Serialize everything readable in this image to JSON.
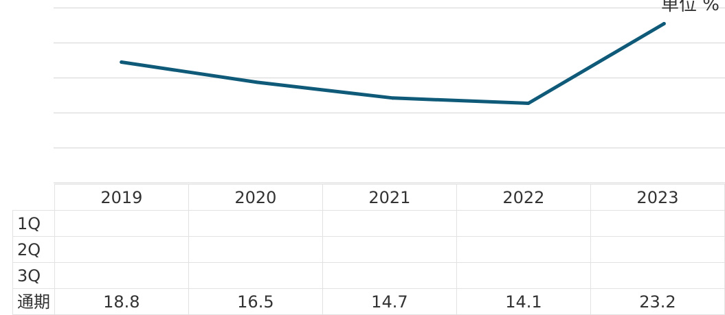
{
  "chart_data": {
    "type": "line",
    "unit_label": "単位 %",
    "categories": [
      "2019",
      "2020",
      "2021",
      "2022",
      "2023"
    ],
    "series": [
      {
        "values": [
          18.8,
          16.5,
          14.7,
          14.1,
          23.2
        ]
      }
    ],
    "ylim": [
      5,
      25
    ],
    "grid": true,
    "line_color": "#0e5a78",
    "table": {
      "rows": [
        {
          "label": "1Q",
          "values": [
            "",
            "",
            "",
            "",
            ""
          ]
        },
        {
          "label": "2Q",
          "values": [
            "",
            "",
            "",
            "",
            ""
          ]
        },
        {
          "label": "3Q",
          "values": [
            "",
            "",
            "",
            "",
            ""
          ]
        },
        {
          "label": "通期",
          "values": [
            "18.8",
            "16.5",
            "14.7",
            "14.1",
            "23.2"
          ]
        }
      ]
    }
  }
}
